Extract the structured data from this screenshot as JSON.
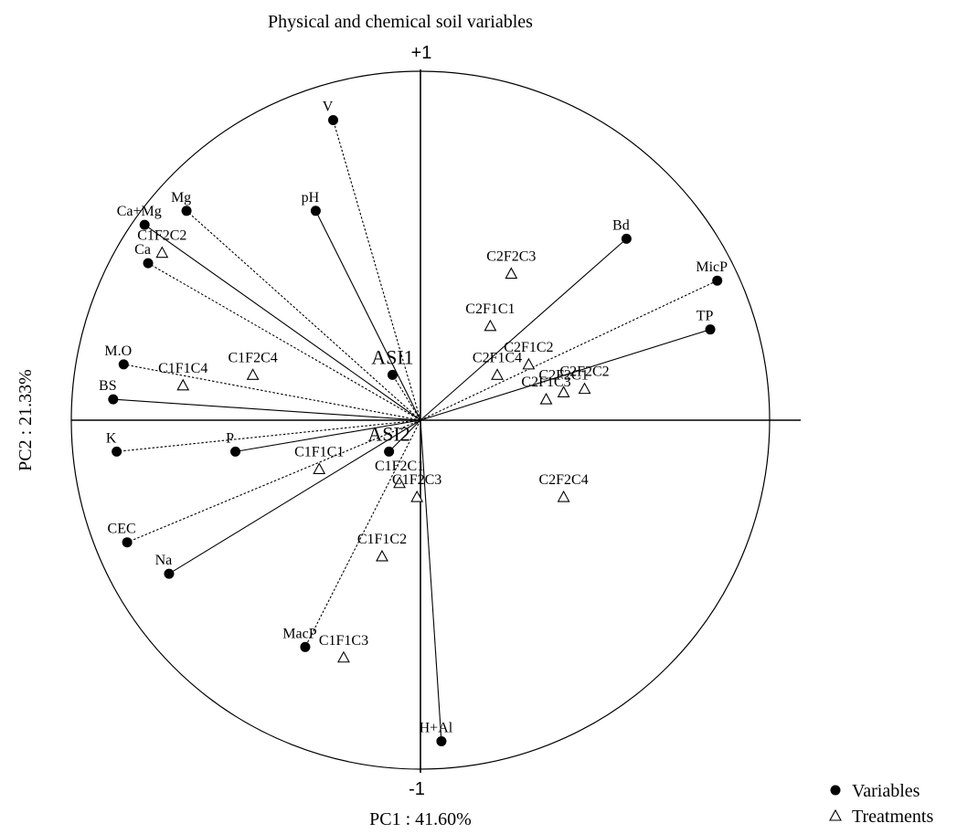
{
  "chart_data": {
    "type": "scatter",
    "title": "Physical and chemical soil variables",
    "xlabel": "PC1 : 41.60%",
    "ylabel": "PC2 : 21.33%",
    "xlim": [
      -1,
      1
    ],
    "ylim": [
      -1,
      1
    ],
    "tick_labels": {
      "top": "+1",
      "bottom": "-1"
    },
    "variables": [
      {
        "label": "V",
        "x": -0.25,
        "y": 0.86
      },
      {
        "label": "pH",
        "x": -0.3,
        "y": 0.6
      },
      {
        "label": "Mg",
        "x": -0.67,
        "y": 0.6
      },
      {
        "label": "Ca+Mg",
        "x": -0.79,
        "y": 0.56
      },
      {
        "label": "Ca",
        "x": -0.78,
        "y": 0.45
      },
      {
        "label": "Bd",
        "x": 0.59,
        "y": 0.52
      },
      {
        "label": "MicP",
        "x": 0.85,
        "y": 0.4
      },
      {
        "label": "TP",
        "x": 0.83,
        "y": 0.26
      },
      {
        "label": "M.O",
        "x": -0.85,
        "y": 0.16
      },
      {
        "label": "BS",
        "x": -0.88,
        "y": 0.06
      },
      {
        "label": "K",
        "x": -0.87,
        "y": -0.09
      },
      {
        "label": "P",
        "x": -0.53,
        "y": -0.09
      },
      {
        "label": "CEC",
        "x": -0.84,
        "y": -0.35
      },
      {
        "label": "Na",
        "x": -0.72,
        "y": -0.44
      },
      {
        "label": "MacP",
        "x": -0.33,
        "y": -0.65
      },
      {
        "label": "H+Al",
        "x": 0.06,
        "y": -0.92
      },
      {
        "label": "ASI1",
        "x": -0.08,
        "y": 0.13
      },
      {
        "label": "ASI2",
        "x": -0.09,
        "y": -0.09
      }
    ],
    "treatments": [
      {
        "label": "C1F2C2",
        "x": -0.74,
        "y": 0.48
      },
      {
        "label": "C1F2C4",
        "x": -0.48,
        "y": 0.13
      },
      {
        "label": "C1F1C4",
        "x": -0.68,
        "y": 0.1
      },
      {
        "label": "C2F2C3",
        "x": 0.26,
        "y": 0.42
      },
      {
        "label": "C2F1C1",
        "x": 0.2,
        "y": 0.27
      },
      {
        "label": "C2F1C2",
        "x": 0.31,
        "y": 0.16
      },
      {
        "label": "C2F1C4",
        "x": 0.22,
        "y": 0.13
      },
      {
        "label": "C2F1C3",
        "x": 0.36,
        "y": 0.06
      },
      {
        "label": "C2F2C1",
        "x": 0.41,
        "y": 0.08
      },
      {
        "label": "C2F2C2",
        "x": 0.47,
        "y": 0.09
      },
      {
        "label": "C1F1C1",
        "x": -0.29,
        "y": -0.14
      },
      {
        "label": "C1F2C1",
        "x": -0.06,
        "y": -0.18
      },
      {
        "label": "C1F2C3",
        "x": -0.01,
        "y": -0.22
      },
      {
        "label": "C2F2C4",
        "x": 0.41,
        "y": -0.22
      },
      {
        "label": "C1F1C2",
        "x": -0.11,
        "y": -0.39
      },
      {
        "label": "C1F1C3",
        "x": -0.22,
        "y": -0.68
      }
    ],
    "legend": [
      {
        "label": "Variables",
        "marker": "circle"
      },
      {
        "label": "Treatments",
        "marker": "triangle"
      }
    ],
    "legend_position": "bottom-right",
    "grid": false
  }
}
